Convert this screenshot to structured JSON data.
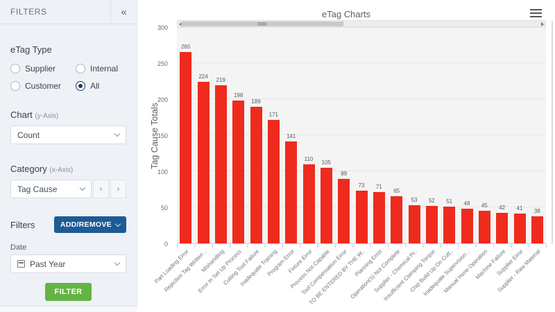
{
  "sidebar": {
    "title": "FILTERS",
    "collapse_icon": "«",
    "etag_type": {
      "label": "eTag Type",
      "options": [
        {
          "label": "Supplier",
          "selected": false
        },
        {
          "label": "Internal",
          "selected": false
        },
        {
          "label": "Customer",
          "selected": false
        },
        {
          "label": "All",
          "selected": true
        }
      ]
    },
    "chart_select": {
      "label": "Chart ",
      "sublabel": "(y-Axis)",
      "value": "Count"
    },
    "category_select": {
      "label": "Category ",
      "sublabel": "(x-Axis)",
      "value": "Tag Cause",
      "prev": "‹",
      "next": "›"
    },
    "filters_section": {
      "label": "Filters",
      "add_remove_label": "ADD/REMOVE"
    },
    "date": {
      "label": "Date",
      "value": "Past Year"
    },
    "filter_button_label": "FILTER"
  },
  "main": {
    "title": "eTag Charts",
    "menu_icon": "hamburger-menu"
  },
  "chart_data": {
    "type": "bar",
    "title": "eTag Charts",
    "xlabel": "",
    "ylabel": "Tag Cause Totals",
    "ylim": [
      0,
      300
    ],
    "yticks": [
      0,
      50,
      100,
      150,
      200,
      250,
      300
    ],
    "grid": true,
    "legend": "none",
    "bar_color": "#ef2b1d",
    "categories": [
      "Part Loading Error",
      "Rejection Tag Written ..",
      "Mishandling",
      "Error In Set Up Process",
      "Cutting Tool Failure",
      "Inadequate Training",
      "Program Error",
      "Fixture Error",
      "Process Not Capable",
      "Tool Compensation Error",
      "TO BE ENTERED BY THE W..",
      "Planning Error",
      "Operation(S) Not Complete",
      "Supplier - Chemical Pr..",
      "Insufficient Clamping Torque",
      "Chip Build Up On Cutt..",
      "Inadequate Supervision ..",
      "Manual Hone Operation",
      "Machine Failure",
      "Supplier Error",
      "Supplier - Raw Material"
    ],
    "values": [
      265,
      224,
      219,
      198,
      189,
      171,
      141,
      110,
      105,
      89,
      73,
      71,
      65,
      53,
      52,
      51,
      48,
      45,
      42,
      41,
      38
    ]
  },
  "colors": {
    "sidebar_bg": "#eef1f6",
    "accent_navy": "#1e5b94",
    "radio_selected": "#16395f",
    "filter_green": "#63b445",
    "bar_red": "#ef2b1d",
    "plot_bg": "#f4f4f4"
  }
}
